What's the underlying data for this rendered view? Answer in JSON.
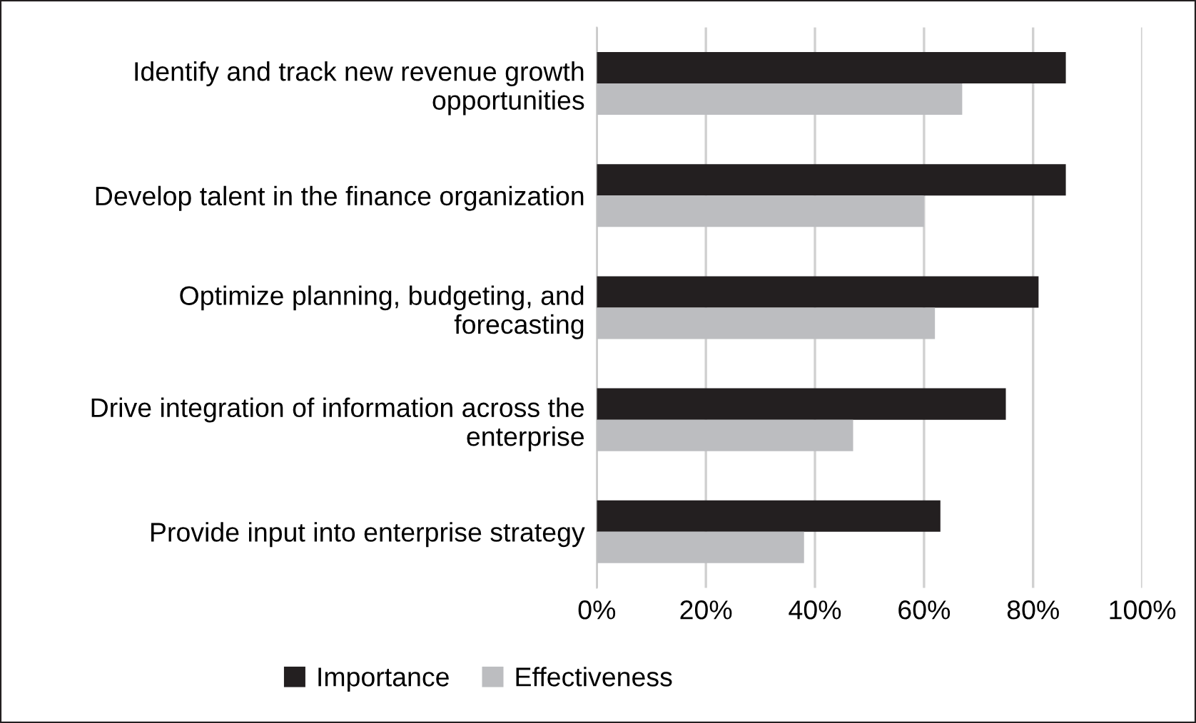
{
  "chart_data": {
    "type": "bar",
    "orientation": "horizontal",
    "categories": [
      "Identify and track new revenue growth\nopportunities",
      "Develop talent in the finance organization",
      "Optimize planning, budgeting, and\nforecasting",
      "Drive integration of information across the\nenterprise",
      "Provide input into enterprise strategy"
    ],
    "series": [
      {
        "name": "Importance",
        "color": "#231f20",
        "values": [
          86,
          86,
          81,
          75,
          63
        ]
      },
      {
        "name": "Effectiveness",
        "color": "#bcbdc0",
        "values": [
          67,
          60,
          62,
          47,
          38
        ]
      }
    ],
    "xlim": [
      0,
      100
    ],
    "xticks": [
      {
        "value": 0,
        "label": "0%"
      },
      {
        "value": 20,
        "label": "20%"
      },
      {
        "value": 40,
        "label": "40%"
      },
      {
        "value": 60,
        "label": "60%"
      },
      {
        "value": 80,
        "label": "80%"
      },
      {
        "value": 100,
        "label": "100%"
      }
    ],
    "grid": "x",
    "legend": "bottom"
  }
}
